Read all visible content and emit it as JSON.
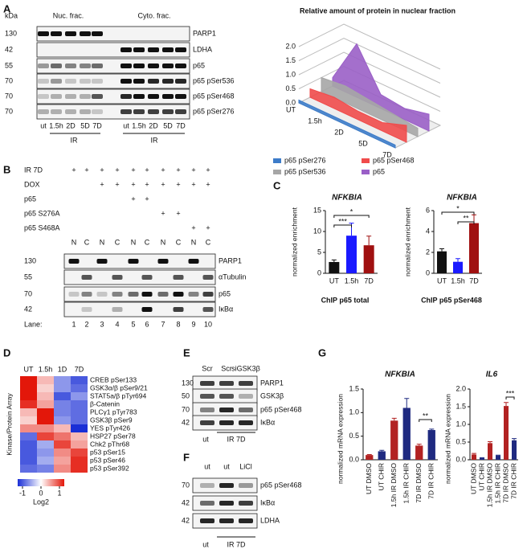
{
  "figure": {
    "letters": [
      "A",
      "B",
      "C",
      "D",
      "E",
      "F",
      "G"
    ],
    "blot_A": {
      "kda_title": "kDa",
      "groups": [
        "Nuc. frac.",
        "Cyto. frac."
      ],
      "rows": [
        {
          "kda": "130",
          "label": "PARP1"
        },
        {
          "kda": "42",
          "label": "LDHA"
        },
        {
          "kda": "55",
          "label": "p65"
        },
        {
          "kda": "70",
          "label": "p65 pSer536"
        },
        {
          "kda": "70",
          "label": "p65 pSer468"
        },
        {
          "kda": "70",
          "label": "p65 pSer276"
        }
      ],
      "lanes": [
        "ut",
        "1.5h",
        "2D",
        "5D",
        "7D",
        "ut",
        "1.5h",
        "2D",
        "5D",
        "7D"
      ],
      "treatment": [
        "IR",
        "IR"
      ]
    },
    "blot_B": {
      "conditions": [
        {
          "label": "IR 7D",
          "marks": [
            "+",
            "+",
            "+",
            "+",
            "+",
            "+",
            "+",
            "+",
            "+",
            "+"
          ]
        },
        {
          "label": "DOX",
          "marks": [
            null,
            null,
            "+",
            "+",
            "+",
            "+",
            "+",
            "+",
            "+",
            "+"
          ]
        },
        {
          "label": "p65",
          "marks": [
            null,
            null,
            null,
            null,
            "+",
            "+",
            null,
            null,
            null,
            null
          ]
        },
        {
          "label": "p65 S276A",
          "marks": [
            null,
            null,
            null,
            null,
            null,
            null,
            "+",
            "+",
            null,
            null
          ]
        },
        {
          "label": "p65 S468A",
          "marks": [
            null,
            null,
            null,
            null,
            null,
            null,
            null,
            null,
            "+",
            "+"
          ]
        }
      ],
      "fractions": [
        "N",
        "C",
        "N",
        "C",
        "N",
        "C",
        "N",
        "C",
        "N",
        "C"
      ],
      "rows": [
        {
          "kda": "130",
          "label": "PARP1"
        },
        {
          "kda": "55",
          "label": "αTubulin"
        },
        {
          "kda": "70",
          "label": "p65"
        },
        {
          "kda": "42",
          "label": "IκBα"
        }
      ],
      "lane_title": "Lane:",
      "lanes": [
        "1",
        "2",
        "3",
        "4",
        "5",
        "6",
        "7",
        "8",
        "9",
        "10"
      ]
    },
    "blot_E": {
      "lanes": [
        "Scr",
        "Scr",
        "siGSK3β"
      ],
      "rows": [
        {
          "kda": "130",
          "label": "PARP1"
        },
        {
          "kda": "50",
          "label": "GSK3β"
        },
        {
          "kda": "70",
          "label": "p65 pSer468"
        },
        {
          "kda": "42",
          "label": "IκBα"
        }
      ],
      "bottom": [
        "ut",
        "IR 7D"
      ]
    },
    "blot_F": {
      "lanes": [
        "ut",
        "ut",
        "LiCl"
      ],
      "rows": [
        {
          "kda": "70",
          "label": "p65 pSer468"
        },
        {
          "kda": "42",
          "label": "IκBα"
        },
        {
          "kda": "42",
          "label": "LDHA"
        }
      ],
      "bottom": [
        "ut",
        "IR 7D"
      ]
    }
  },
  "chart_data": [
    {
      "type": "area3d",
      "title": "Relative amount of protein in nuclear fraction",
      "categories": [
        "UT",
        "1.5h",
        "2D",
        "5D",
        "7D"
      ],
      "series": [
        {
          "name": "p65 pSer276",
          "color": "#3d7cc9",
          "values": [
            0.1,
            0.1,
            0.1,
            0.1,
            0.1
          ]
        },
        {
          "name": "p65 pSer468",
          "color": "#f04b4b",
          "values": [
            0.3,
            0.4,
            0.3,
            0.3,
            0.6
          ]
        },
        {
          "name": "p65 pSer536",
          "color": "#a6a6a6",
          "values": [
            0.5,
            0.6,
            0.5,
            0.4,
            0.3
          ]
        },
        {
          "name": "p65",
          "color": "#9a5fc7",
          "values": [
            0.3,
            1.9,
            0.5,
            0.4,
            0.6
          ]
        }
      ],
      "ylim": [
        0,
        2
      ],
      "yticks": [
        {
          "value": 0,
          "label": "0.0"
        },
        {
          "value": 0.5,
          "label": "0.5"
        },
        {
          "value": 1,
          "label": "1.0"
        },
        {
          "value": 1.5,
          "label": "1.5"
        },
        {
          "value": 2,
          "label": "2.0"
        }
      ]
    },
    {
      "type": "bar",
      "title": "NFKBIA",
      "ylabel": "normalized enrichment",
      "xlabel": "ChIP p65 total",
      "categories": [
        "UT",
        "1.5h",
        "7D"
      ],
      "values": [
        2.7,
        9.0,
        6.7
      ],
      "errors": [
        0.5,
        3,
        2.2
      ],
      "colors": [
        "#111111",
        "#1a1aff",
        "#a01010"
      ],
      "ylim": [
        0,
        15
      ],
      "yticks": [
        0,
        5,
        10,
        15
      ],
      "significance": [
        "***",
        "*"
      ]
    },
    {
      "type": "bar",
      "title": "NFKBIA",
      "ylabel": "normalized enrichment",
      "xlabel": "ChIP p65 pSer468",
      "categories": [
        "UT",
        "1.5h",
        "7D"
      ],
      "values": [
        2.1,
        1.1,
        4.8
      ],
      "errors": [
        0.25,
        0.3,
        0.8
      ],
      "colors": [
        "#111111",
        "#1a1aff",
        "#a01010"
      ],
      "ylim": [
        0,
        6
      ],
      "yticks": [
        0,
        2,
        4,
        6
      ],
      "significance": [
        "*",
        "**"
      ]
    },
    {
      "type": "bar",
      "title": "NFKBIA",
      "ylabel": "normalized mRNA expression",
      "categories": [
        "UT DMSO",
        "UT CHIR",
        "1.5h IR DMSO",
        "1.5h IR CHIR",
        "7D IR DMSO",
        "7D IR CHIR"
      ],
      "values": [
        0.1,
        0.18,
        0.83,
        1.1,
        0.3,
        0.63
      ],
      "errors": [
        0.01,
        0.02,
        0.05,
        0.2,
        0.03,
        0.02
      ],
      "colors": [
        "#b22222",
        "#1f2a80",
        "#b22222",
        "#1f2a80",
        "#b22222",
        "#1f2a80"
      ],
      "ylim": [
        0,
        1.5
      ],
      "yticks": [
        {
          "value": 0,
          "label": "0.0"
        },
        {
          "value": 0.5,
          "label": "0.5"
        },
        {
          "value": 1,
          "label": "1.0"
        },
        {
          "value": 1.5,
          "label": "1.5"
        }
      ],
      "significance": [
        "**"
      ]
    },
    {
      "type": "bar",
      "title": "IL6",
      "ylabel": "normalized mRNA expression",
      "categories": [
        "UT DMSO",
        "UT CHIR",
        "1.5h IR DMSO",
        "1.5h IR CHIR",
        "7D IR DMSO",
        "7D IR CHIR"
      ],
      "values": [
        0.15,
        0.05,
        0.47,
        0.12,
        1.52,
        0.55
      ],
      "errors": [
        0.03,
        0.01,
        0.04,
        0.01,
        0.1,
        0.05
      ],
      "colors": [
        "#b22222",
        "#1f2a80",
        "#b22222",
        "#1f2a80",
        "#b22222",
        "#1f2a80"
      ],
      "ylim": [
        0,
        2
      ],
      "yticks": [
        {
          "value": 0,
          "label": "0.0"
        },
        {
          "value": 0.5,
          "label": "0.5"
        },
        {
          "value": 1,
          "label": "1.0"
        },
        {
          "value": 1.5,
          "label": "1.5"
        },
        {
          "value": 2,
          "label": "2.0"
        }
      ],
      "significance": [
        "***"
      ]
    },
    {
      "type": "heatmap",
      "ylabel": "Kinase/Protein Array",
      "columns": [
        "UT",
        "1.5h",
        "1D",
        "7D"
      ],
      "rows": [
        "CREB pSer133",
        "GSK3α/β pSer9/21",
        "STAT5a/β pTyr694",
        "β-Catenin",
        "PLCγ1 pTyr783",
        "GSK3β pSer9",
        "YES pTyr426",
        "HSP27 pSer78",
        "Chk2 pThr68",
        "p53 pSer15",
        "p53 pSer46",
        "p53 pSer392"
      ],
      "values": [
        [
          1.0,
          0.3,
          -0.5,
          -0.8
        ],
        [
          1.0,
          0.2,
          -0.5,
          -0.7
        ],
        [
          1.0,
          0.3,
          -0.8,
          -0.5
        ],
        [
          0.9,
          0.4,
          -0.6,
          -0.7
        ],
        [
          0.3,
          1.0,
          -0.6,
          -0.7
        ],
        [
          0.2,
          1.0,
          -0.5,
          -0.7
        ],
        [
          0.5,
          0.5,
          0.3,
          -1.0
        ],
        [
          -0.7,
          0.8,
          0.6,
          0.3
        ],
        [
          -0.8,
          -0.4,
          0.8,
          0.4
        ],
        [
          -0.8,
          -0.5,
          0.5,
          0.8
        ],
        [
          -0.8,
          -0.4,
          0.4,
          0.9
        ],
        [
          -0.7,
          -0.6,
          0.5,
          0.9
        ]
      ],
      "colorbar_ticks": [
        -1,
        0,
        1
      ],
      "colorbar_label": "Log2"
    }
  ]
}
